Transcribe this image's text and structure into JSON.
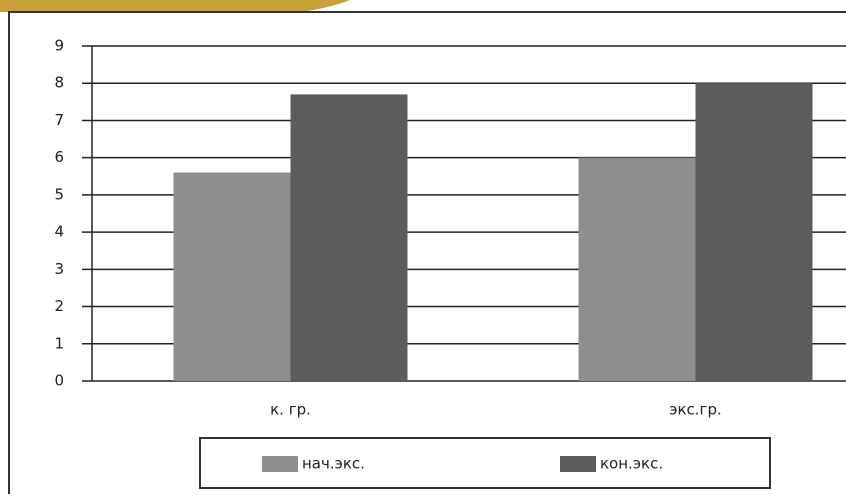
{
  "chart_data": {
    "type": "bar",
    "categories": [
      "к. гр.",
      "экс.гр."
    ],
    "series": [
      {
        "name": "нач.экс.",
        "color": "#8e8e8e",
        "values": [
          5.6,
          6.0
        ]
      },
      {
        "name": "кон.экс.",
        "color": "#5c5c5c",
        "values": [
          7.7,
          8.0
        ]
      }
    ],
    "ylim": [
      0,
      9
    ],
    "yticks": [
      0,
      1,
      2,
      3,
      4,
      5,
      6,
      7,
      8,
      9
    ],
    "grid": true
  }
}
